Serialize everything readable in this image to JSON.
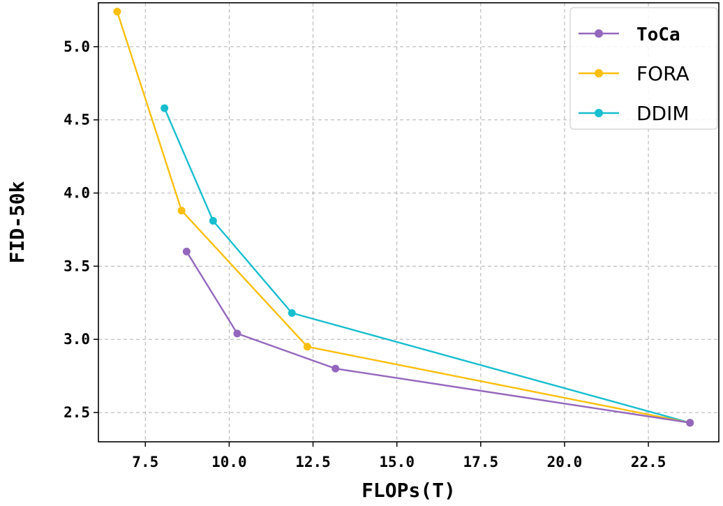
{
  "chart_data": {
    "type": "line",
    "xlabel": "FLOPs(T)",
    "ylabel": "FID-50k",
    "xlim": [
      6.1,
      24.6
    ],
    "ylim": [
      2.3,
      5.3
    ],
    "xticks": [
      7.5,
      10.0,
      12.5,
      15.0,
      17.5,
      20.0,
      22.5
    ],
    "xtick_labels": [
      "7.5",
      "10.0",
      "12.5",
      "15.0",
      "17.5",
      "20.0",
      "22.5"
    ],
    "yticks": [
      2.5,
      3.0,
      3.5,
      4.0,
      4.5,
      5.0
    ],
    "ytick_labels": [
      "2.5",
      "3.0",
      "3.5",
      "4.0",
      "4.5",
      "5.0"
    ],
    "grid": true,
    "legend_position": "top-right",
    "series": [
      {
        "name": "ToCa",
        "color": "#9467bd",
        "bold": true,
        "x": [
          8.73,
          10.24,
          13.17,
          23.74
        ],
        "y": [
          3.6,
          3.04,
          2.8,
          2.43
        ]
      },
      {
        "name": "FORA",
        "color": "#fbbf0a",
        "bold": false,
        "x": [
          6.66,
          8.58,
          12.33,
          23.74
        ],
        "y": [
          5.24,
          3.88,
          2.95,
          2.43
        ]
      },
      {
        "name": "DDIM",
        "color": "#17becf",
        "bold": false,
        "x": [
          8.07,
          9.52,
          11.87,
          23.74
        ],
        "y": [
          4.58,
          3.81,
          3.18,
          2.43
        ]
      }
    ]
  }
}
